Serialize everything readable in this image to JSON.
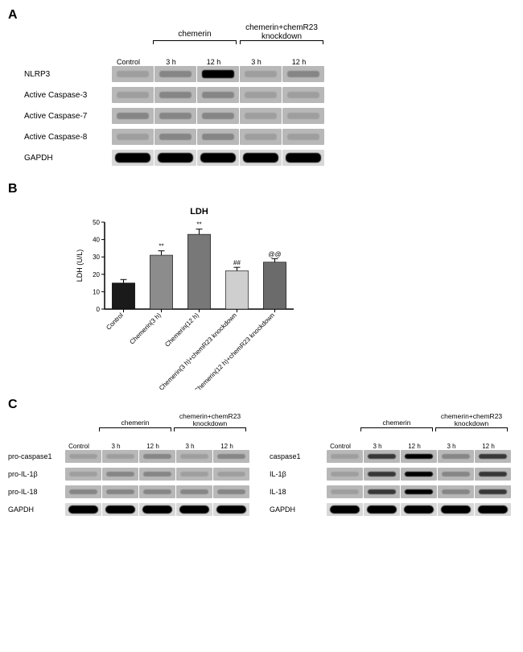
{
  "panelA": {
    "label": "A",
    "groups": {
      "chemerin_label": "chemerin",
      "knockdown_label": "chemerin+chemR23\nknockdown"
    },
    "lane_labels": [
      "Control",
      "3 h",
      "12 h",
      "3 h",
      "12 h"
    ],
    "rows": [
      {
        "label": "NLRP3",
        "intensities": [
          "faint",
          "medium",
          "verystrong",
          "faint",
          "medium"
        ]
      },
      {
        "label": "Active Caspase-3",
        "intensities": [
          "faint",
          "medium",
          "medium",
          "faint",
          "faint"
        ]
      },
      {
        "label": "Active Caspase-7",
        "intensities": [
          "medium",
          "medium",
          "medium",
          "faint",
          "faint"
        ]
      },
      {
        "label": "Active Caspase-8",
        "intensities": [
          "faint",
          "medium",
          "medium",
          "faint",
          "faint"
        ]
      },
      {
        "label": "GAPDH",
        "intensities": [
          "verystrong",
          "verystrong",
          "verystrong",
          "verystrong",
          "verystrong"
        ],
        "gapdh": true
      }
    ]
  },
  "panelB": {
    "label": "B",
    "chart": {
      "type": "bar",
      "title": "LDH",
      "ylabel": "LDH (U/L)",
      "ylim": [
        0,
        50
      ],
      "ytick_step": 10,
      "categories": [
        "Control",
        "Chemerin(3 h)",
        "Chemerin(12 h)",
        "Chemerin(3 h)+chemR23 knockdown",
        "Chemerin(12 h)+chemR23 knockdown"
      ],
      "values": [
        15,
        31,
        43,
        22,
        27
      ],
      "errors": [
        2,
        2.5,
        3,
        2,
        2
      ],
      "annotations": [
        "",
        "**",
        "**",
        "##",
        "@@"
      ],
      "bar_colors": [
        "#1a1a1a",
        "#8c8c8c",
        "#787878",
        "#cfcfcf",
        "#6b6b6b"
      ],
      "bar_width": 0.6,
      "background_color": "#ffffff",
      "axis_color": "#000000",
      "title_fontsize": 11,
      "label_fontsize": 9,
      "tick_fontsize": 8
    }
  },
  "panelC": {
    "label": "C",
    "groups": {
      "chemerin_label": "chemerin",
      "knockdown_label": "chemerin+chemR23\nknockdown"
    },
    "lane_labels": [
      "Control",
      "3 h",
      "12 h",
      "3 h",
      "12 h"
    ],
    "left_rows": [
      {
        "label": "pro-caspase1",
        "intensities": [
          "faint",
          "faint",
          "medium",
          "faint",
          "medium"
        ]
      },
      {
        "label": "pro-IL-1β",
        "intensities": [
          "faint",
          "medium",
          "medium",
          "faint",
          "faint"
        ]
      },
      {
        "label": "pro-IL-18",
        "intensities": [
          "medium",
          "medium",
          "medium",
          "medium",
          "medium"
        ]
      },
      {
        "label": "GAPDH",
        "intensities": [
          "verystrong",
          "verystrong",
          "verystrong",
          "verystrong",
          "verystrong"
        ],
        "gapdh": true
      }
    ],
    "right_rows": [
      {
        "label": "caspase1",
        "intensities": [
          "faint",
          "strong",
          "verystrong",
          "medium",
          "strong"
        ]
      },
      {
        "label": "IL-1β",
        "intensities": [
          "faint",
          "strong",
          "verystrong",
          "medium",
          "strong"
        ]
      },
      {
        "label": "IL-18",
        "intensities": [
          "faint",
          "strong",
          "verystrong",
          "medium",
          "strong"
        ]
      },
      {
        "label": "GAPDH",
        "intensities": [
          "verystrong",
          "verystrong",
          "verystrong",
          "verystrong",
          "verystrong"
        ],
        "gapdh": true
      }
    ]
  }
}
